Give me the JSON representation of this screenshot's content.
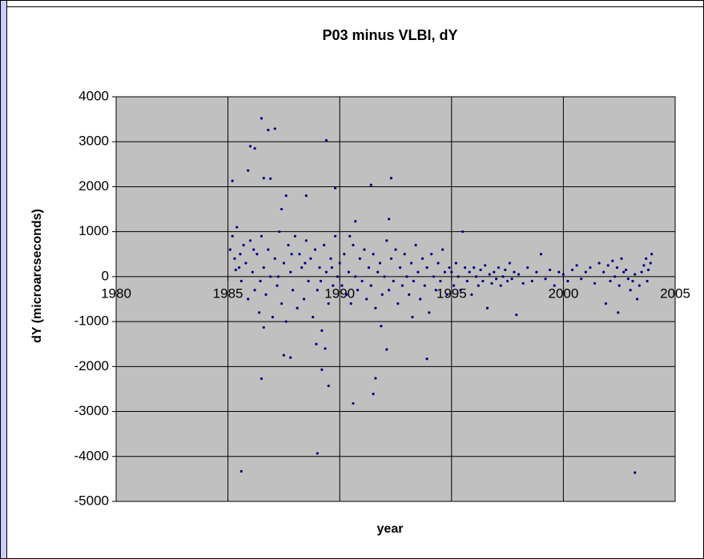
{
  "chart_data": {
    "type": "scatter",
    "title": "P03 minus VLBI, dY",
    "x_label": "year",
    "y_label": "dY (microarcseconds)",
    "color": "#000080",
    "grid": true,
    "xlim": [
      1980,
      2005
    ],
    "xticks": [
      1980,
      1985,
      1990,
      1995,
      2000,
      2005
    ],
    "ylim": [
      -5000,
      4000
    ],
    "yticks": [
      -5000,
      -4000,
      -3000,
      -2000,
      -1000,
      0,
      1000,
      2000,
      3000,
      4000
    ],
    "x": [
      1985.6,
      1989.0,
      2003.2,
      1989.4,
      1986.5,
      1986.8,
      1987.1,
      1986.0,
      1986.2,
      1985.2,
      1985.9,
      1991.4,
      1992.3,
      1992.2,
      1990.7,
      1990.6,
      1991.6,
      1991.5,
      1986.5,
      1989.5,
      1989.2,
      1993.9,
      1992.1,
      1987.8,
      1987.5,
      1986.6,
      1989.8,
      1988.5,
      1987.6,
      1986.9,
      1986.6,
      1987.4,
      1985.1,
      1985.2,
      1985.3,
      1985.4,
      1985.5,
      1985.6,
      1985.7,
      1985.8,
      1985.9,
      1986.0,
      1986.1,
      1986.2,
      1986.3,
      1986.4,
      1986.5,
      1986.6,
      1986.7,
      1986.8,
      1986.9,
      1987.0,
      1987.1,
      1987.2,
      1987.3,
      1987.4,
      1987.5,
      1987.6,
      1987.7,
      1987.8,
      1987.9,
      1988.0,
      1988.1,
      1988.2,
      1988.3,
      1988.4,
      1988.5,
      1988.6,
      1988.7,
      1988.8,
      1988.9,
      1989.0,
      1989.1,
      1989.2,
      1989.3,
      1989.4,
      1989.5,
      1989.6,
      1989.7,
      1989.8,
      1989.9,
      1985.35,
      1985.55,
      1986.15,
      1986.45,
      1987.25,
      1987.85,
      1988.45,
      1989.15,
      1989.65,
      1988.95,
      1989.35,
      1990.0,
      1990.1,
      1990.2,
      1990.3,
      1990.4,
      1990.5,
      1990.6,
      1990.7,
      1990.8,
      1990.9,
      1991.0,
      1991.1,
      1991.2,
      1991.3,
      1991.4,
      1991.5,
      1991.6,
      1991.7,
      1991.8,
      1991.9,
      1992.0,
      1992.1,
      1992.2,
      1992.3,
      1992.4,
      1992.5,
      1992.6,
      1992.7,
      1992.8,
      1992.9,
      1993.0,
      1993.1,
      1993.2,
      1993.3,
      1993.4,
      1993.5,
      1993.6,
      1993.7,
      1993.8,
      1993.9,
      1994.0,
      1994.1,
      1994.2,
      1994.3,
      1994.4,
      1994.5,
      1994.6,
      1994.7,
      1994.8,
      1994.9,
      1990.45,
      1993.25,
      1991.85,
      1995.0,
      1995.1,
      1995.2,
      1995.3,
      1995.4,
      1995.5,
      1995.6,
      1995.7,
      1995.8,
      1995.9,
      1996.0,
      1996.1,
      1996.2,
      1996.3,
      1996.4,
      1996.5,
      1996.6,
      1996.7,
      1996.8,
      1996.9,
      1997.0,
      1997.1,
      1997.2,
      1997.3,
      1997.4,
      1997.5,
      1997.6,
      1997.7,
      1997.8,
      1997.9,
      1998.0,
      1998.2,
      1998.4,
      1998.6,
      1998.8,
      1999.0,
      1999.2,
      1999.4,
      1999.6,
      1999.8,
      2000.0,
      2000.2,
      2000.4,
      2000.6,
      2000.8,
      2001.0,
      2001.2,
      2001.4,
      2001.6,
      2001.8,
      2002.0,
      2002.1,
      2002.2,
      2002.3,
      2002.4,
      2002.5,
      2002.6,
      2002.7,
      2002.8,
      2002.9,
      2003.0,
      2003.1,
      2003.2,
      2003.3,
      2003.4,
      2003.5,
      2003.6,
      2003.7,
      2003.8,
      2003.9,
      2003.95,
      2003.75,
      2001.9,
      2002.45
    ],
    "values": [
      -4330,
      -3930,
      -4360,
      3030,
      3520,
      3260,
      3290,
      2900,
      2850,
      2130,
      2360,
      2040,
      2190,
      1280,
      1230,
      -2820,
      -2260,
      -2610,
      -2270,
      -2430,
      -2070,
      -1830,
      -1620,
      -1800,
      -1750,
      -1130,
      1970,
      1800,
      1800,
      2180,
      2190,
      1500,
      600,
      900,
      400,
      1100,
      200,
      -100,
      700,
      300,
      -500,
      800,
      100,
      -300,
      500,
      -800,
      900,
      200,
      -400,
      600,
      0,
      -900,
      400,
      -200,
      1000,
      -600,
      300,
      -1000,
      700,
      100,
      -300,
      900,
      -700,
      500,
      200,
      -500,
      800,
      -100,
      400,
      -900,
      600,
      -300,
      200,
      -1200,
      700,
      100,
      -600,
      400,
      -200,
      900,
      0,
      150,
      500,
      600,
      -100,
      0,
      500,
      300,
      -100,
      200,
      -1500,
      -1600,
      300,
      -200,
      500,
      -400,
      100,
      -600,
      700,
      0,
      -300,
      400,
      -100,
      600,
      -500,
      200,
      -200,
      500,
      -700,
      100,
      300,
      -400,
      0,
      800,
      -300,
      400,
      -100,
      600,
      -600,
      200,
      -200,
      500,
      0,
      -400,
      300,
      -100,
      700,
      100,
      -500,
      400,
      -200,
      200,
      -800,
      500,
      0,
      -300,
      300,
      -100,
      600,
      100,
      -400,
      200,
      900,
      -900,
      -1100,
      100,
      -200,
      300,
      0,
      -300,
      1000,
      200,
      -100,
      100,
      -400,
      200,
      0,
      -200,
      150,
      -100,
      250,
      -700,
      50,
      -150,
      100,
      -50,
      200,
      -200,
      0,
      150,
      -100,
      300,
      -50,
      100,
      -850,
      50,
      -150,
      200,
      -100,
      100,
      500,
      -50,
      150,
      -200,
      100,
      50,
      -100,
      150,
      250,
      -50,
      100,
      200,
      -150,
      300,
      100,
      250,
      -100,
      350,
      0,
      200,
      -200,
      400,
      100,
      150,
      -50,
      -300,
      -100,
      50,
      -500,
      -200,
      100,
      250,
      400,
      150,
      300,
      500,
      -100,
      -600,
      -800
    ]
  }
}
